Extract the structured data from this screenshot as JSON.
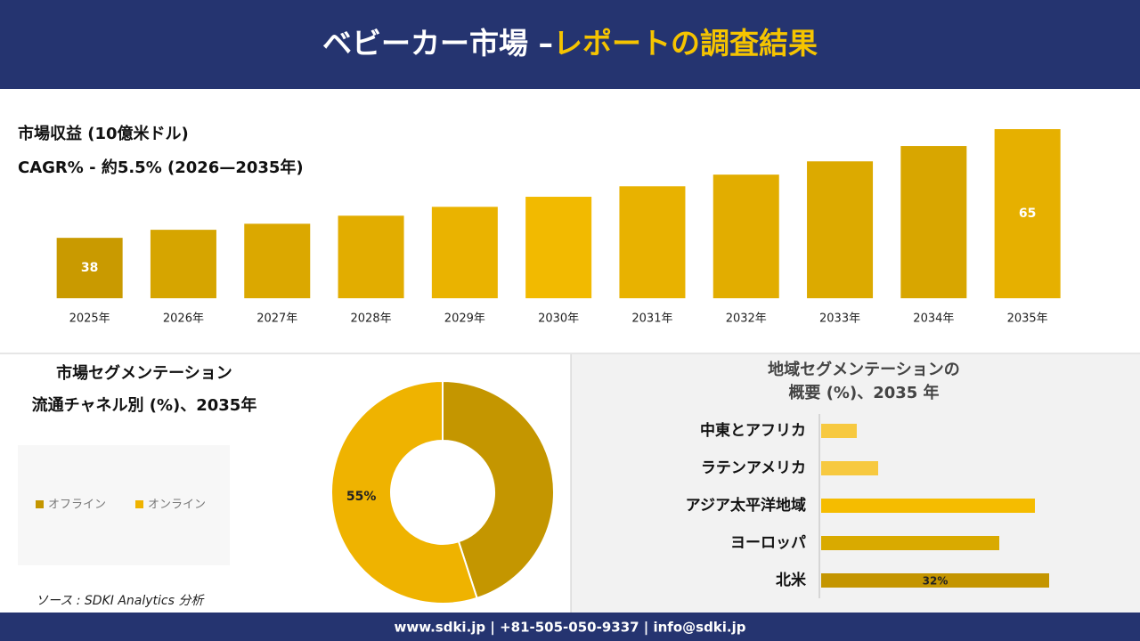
{
  "header": {
    "title_main": "ベビーカー市場 –",
    "title_accent": "レポートの調査結果"
  },
  "chart_data": [
    {
      "type": "bar",
      "title": "市場収益 (10億米ドル)",
      "subtitle": "CAGR% - 約5.5% (2026—2035年)",
      "categories": [
        "2025年",
        "2026年",
        "2027年",
        "2028年",
        "2029年",
        "2030年",
        "2031年",
        "2032年",
        "2033年",
        "2034年",
        "2035年"
      ],
      "values": [
        38,
        40,
        41.5,
        43.5,
        45.7,
        48.2,
        50.8,
        53.7,
        57,
        60.8,
        65
      ],
      "value_labels": [
        "38",
        null,
        null,
        null,
        null,
        null,
        null,
        null,
        null,
        null,
        "65"
      ],
      "colors": [
        "#c99a00",
        "#d6a500",
        "#dba800",
        "#e2ad00",
        "#eab300",
        "#f2ba00",
        "#e8b200",
        "#e2ad00",
        "#dcaa00",
        "#d8a600",
        "#e6b000"
      ],
      "ylim": [
        23,
        67
      ]
    },
    {
      "type": "donut",
      "title": "市場セグメンテーション",
      "subtitle": "流通チャネル別 (%)、2035年",
      "series": [
        {
          "name": "オフライン",
          "color": "#c49600"
        },
        {
          "name": "オンライン",
          "color": "#efb300"
        }
      ],
      "values": [
        45,
        55
      ],
      "value_labels": [
        null,
        "55%"
      ]
    },
    {
      "type": "hbar",
      "title": "地域セグメンテーションの",
      "subtitle": "概要 (%)、2035 年",
      "categories": [
        "中東とアフリカ",
        "ラテンアメリカ",
        "アジア太平洋地域",
        "ヨーロッパ",
        "北米"
      ],
      "values": [
        5,
        8,
        30,
        25,
        32
      ],
      "value_labels": [
        null,
        null,
        null,
        null,
        "32%"
      ],
      "colors": [
        "#f7c940",
        "#f7c940",
        "#f5bc00",
        "#d9aa00",
        "#c49500"
      ],
      "xlim": [
        0,
        40
      ]
    }
  ],
  "source": "ソース : SDKI Analytics 分析",
  "footer": "www.sdki.jp | +81-505-050-9337 | info@sdki.jp"
}
